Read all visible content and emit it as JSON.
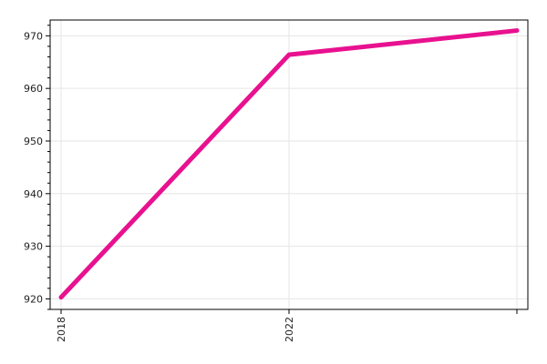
{
  "chart_data": {
    "type": "line",
    "title": "",
    "xlabel": "",
    "ylabel": "",
    "x": [
      2018,
      2022,
      2026
    ],
    "x_tick_labels": [
      "2018",
      "2022",
      ""
    ],
    "series": [
      {
        "values": [
          920.3,
          966.4,
          971.0
        ],
        "color": "#e8118f"
      }
    ],
    "xlim": [
      2018,
      2026
    ],
    "ylim": [
      918,
      973
    ],
    "y_ticks": [
      920,
      930,
      940,
      950,
      960,
      970
    ],
    "y_tick_labels": [
      "920",
      "930",
      "940",
      "950",
      "960",
      "970"
    ],
    "grid": true,
    "legend": "none"
  }
}
